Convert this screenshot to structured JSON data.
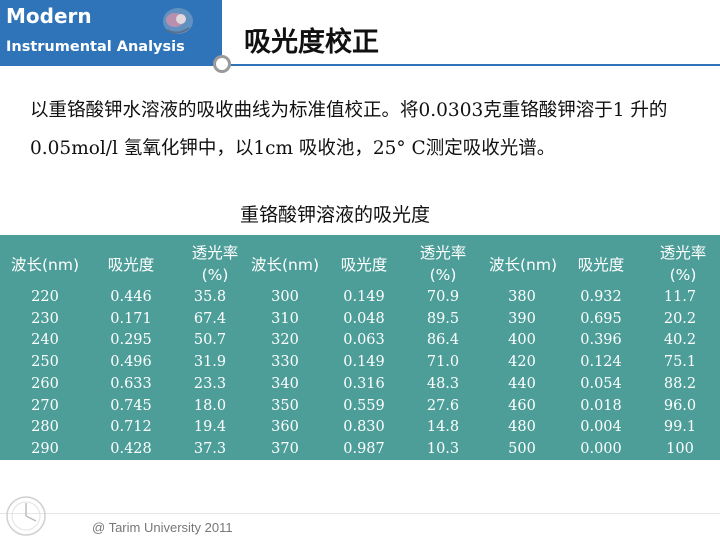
{
  "brand": {
    "title": "Modern",
    "subtitle": "Instrumental Analysis"
  },
  "slide": {
    "title": "吸光度校正",
    "intro": "以重铬酸钾水溶液的吸收曲线为标准值校正。将0.0303克重铬酸钾溶于1 升的0.05mol/l 氢氧化钾中，以1cm 吸收池，25° C测定吸收光谱。",
    "table_caption": "重铬酸钾溶液的吸光度"
  },
  "table": {
    "headers": [
      {
        "wavelength": "波长(nm)",
        "absorbance": "吸光度",
        "transmittance_line1": "透光率",
        "transmittance_line2": "(%)"
      },
      {
        "wavelength": "波长(nm)",
        "absorbance": "吸光度",
        "transmittance_line1": "透光率",
        "transmittance_line2": "(%)"
      },
      {
        "wavelength": "波长(nm)",
        "absorbance": "吸光度",
        "transmittance_line1": "透光率",
        "transmittance_line2": "(%)"
      }
    ],
    "groups": [
      {
        "wavelength": [
          "220",
          "230",
          "240",
          "250",
          "260",
          "270",
          "280",
          "290"
        ],
        "absorbance": [
          "0.446",
          "0.171",
          "0.295",
          "0.496",
          "0.633",
          "0.745",
          "0.712",
          "0.428"
        ],
        "transmittance": [
          "35.8",
          "67.4",
          "50.7",
          "31.9",
          "23.3",
          "18.0",
          "19.4",
          "37.3"
        ]
      },
      {
        "wavelength": [
          "300",
          "310",
          "320",
          "330",
          "340",
          "350",
          "360",
          "370"
        ],
        "absorbance": [
          "0.149",
          "0.048",
          "0.063",
          "0.149",
          "0.316",
          "0.559",
          "0.830",
          "0.987"
        ],
        "transmittance": [
          "70.9",
          "89.5",
          "86.4",
          "71.0",
          "48.3",
          "27.6",
          "14.8",
          "10.3"
        ]
      },
      {
        "wavelength": [
          "380",
          "390",
          "400",
          "420",
          "440",
          "460",
          "480",
          "500"
        ],
        "absorbance": [
          "0.932",
          "0.695",
          "0.396",
          "0.124",
          "0.054",
          "0.018",
          "0.004",
          "0.000"
        ],
        "transmittance": [
          "11.7",
          "20.2",
          "40.2",
          "75.1",
          "88.2",
          "96.0",
          "99.1",
          "100"
        ]
      }
    ]
  },
  "footer": {
    "text": "@ Tarim University 2011"
  },
  "colors": {
    "brand": "#2f74b8",
    "table_bg": "#4d9e99",
    "table_text": "#ffffff"
  },
  "icons": [
    "logo-icon",
    "ring-icon",
    "clock-icon"
  ]
}
